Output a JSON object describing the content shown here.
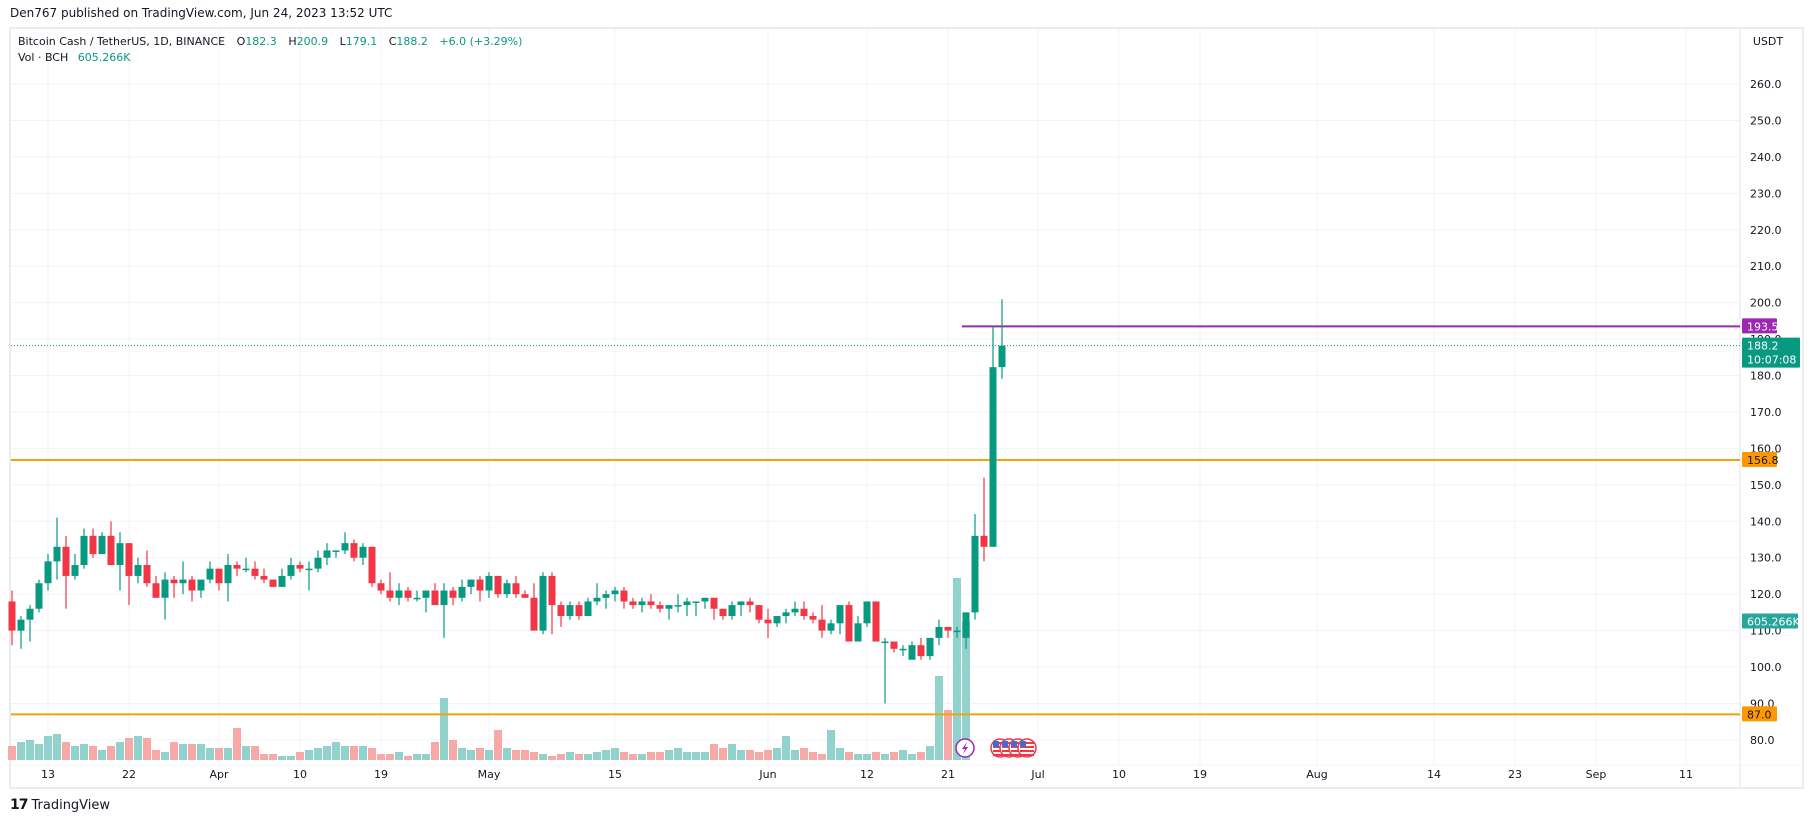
{
  "header": {
    "published": "Den767 published on TradingView.com, Jun 24, 2023 13:52 UTC"
  },
  "legend": {
    "symbol": "Bitcoin Cash / TetherUS, 1D, BINANCE",
    "open_label": "O",
    "open": "182.3",
    "high_label": "H",
    "high": "200.9",
    "low_label": "L",
    "low": "179.1",
    "close_label": "C",
    "close": "188.2",
    "change": "+6.0 (+3.29%)",
    "vol_label": "Vol · BCH",
    "vol_value": "605.266K"
  },
  "price_axis": {
    "currency": "USDT",
    "ticks": [
      "260.0",
      "250.0",
      "240.0",
      "230.0",
      "220.0",
      "210.0",
      "200.0",
      "190.0",
      "180.0",
      "170.0",
      "160.0",
      "150.0",
      "140.0",
      "130.0",
      "120.0",
      "110.0",
      "100.0",
      "90.0",
      "80.0"
    ],
    "tick_values": [
      260,
      250,
      240,
      230,
      220,
      210,
      200,
      190,
      180,
      170,
      160,
      150,
      140,
      130,
      120,
      110,
      100,
      90,
      80
    ]
  },
  "price_labels": [
    {
      "text": "193.5",
      "value": 193.5,
      "color": "#9c27b0",
      "text_color": "#ffffff"
    },
    {
      "text": "188.2",
      "sub": "10:07:08",
      "value": 188.2,
      "color": "#089981",
      "text_color": "#ffffff"
    },
    {
      "text": "156.8",
      "value": 156.8,
      "color": "#ff9800",
      "text_color": "#131722"
    },
    {
      "text": "605.266K",
      "value": 112.5,
      "color": "#26a69a",
      "text_color": "#ffffff"
    },
    {
      "text": "87.0",
      "value": 87.0,
      "color": "#ff9800",
      "text_color": "#131722"
    }
  ],
  "horizontal_lines": [
    {
      "name": "resistance-line-193-5",
      "value": 193.5,
      "color": "#9c27b0",
      "start_index": 102
    },
    {
      "name": "support-line-156-8",
      "value": 156.8,
      "color": "#f0a30a",
      "start_index": -5
    },
    {
      "name": "support-line-87-0",
      "value": 87.0,
      "color": "#f0a30a",
      "start_index": -5
    }
  ],
  "time_axis": {
    "labels": [
      "13",
      "22",
      "Apr",
      "10",
      "19",
      "May",
      "15",
      "Jun",
      "12",
      "21",
      "Jul",
      "10",
      "19",
      "Aug",
      "14",
      "23",
      "Sep",
      "11"
    ],
    "label_index": [
      0,
      9,
      19,
      28,
      37,
      49,
      63,
      80,
      91,
      100,
      110,
      119,
      128,
      141,
      154,
      163,
      172,
      182
    ]
  },
  "events": [
    {
      "type": "lightning-icon",
      "index": 102
    },
    {
      "type": "us-flag-icon",
      "index": 105
    },
    {
      "type": "us-flag-icon",
      "index": 106
    },
    {
      "type": "us-flag-icon",
      "index": 107
    },
    {
      "type": "us-flag-icon",
      "index": 108
    }
  ],
  "footer": {
    "brand": "TradingView",
    "logo": "17"
  },
  "colors": {
    "up": "#089981",
    "down": "#f23645",
    "vol_up": "#92d2cc",
    "vol_down": "#f7a9a7",
    "grid": "#f0f3fa"
  },
  "chart_data": {
    "type": "candlestick",
    "title": "Bitcoin Cash / TetherUS, 1D, BINANCE",
    "ylabel": "USDT",
    "ylim": [
      76,
      265
    ],
    "grid": true,
    "start_date": "2023-03-09",
    "x_ticks": [
      "13",
      "22",
      "Apr",
      "10",
      "19",
      "May",
      "15",
      "Jun",
      "12",
      "21",
      "Jul",
      "10",
      "19",
      "Aug",
      "14",
      "23",
      "Sep",
      "11"
    ],
    "horizontal_levels": [
      193.5,
      156.8,
      87.0
    ],
    "last_price": 188.2,
    "last_volume": "605.266K",
    "ohlc": [
      [
        118,
        121,
        106,
        110
      ],
      [
        110,
        114,
        105,
        113
      ],
      [
        113,
        117,
        107,
        116
      ],
      [
        116,
        124,
        115,
        123
      ],
      [
        123,
        131,
        121,
        129
      ],
      [
        129,
        141,
        124,
        133
      ],
      [
        133,
        136,
        116,
        125
      ],
      [
        125,
        131,
        124,
        128
      ],
      [
        128,
        138,
        127,
        136
      ],
      [
        136,
        138,
        130,
        131
      ],
      [
        131,
        137,
        131,
        136
      ],
      [
        136,
        140,
        129,
        128
      ],
      [
        128,
        137,
        121,
        134
      ],
      [
        134,
        134,
        117,
        125
      ],
      [
        125,
        130,
        123,
        128
      ],
      [
        128,
        132,
        122,
        123
      ],
      [
        123,
        125,
        119,
        119
      ],
      [
        119,
        126,
        113,
        124
      ],
      [
        124,
        125,
        119,
        123
      ],
      [
        123,
        129,
        120,
        124
      ],
      [
        124,
        125,
        118,
        121
      ],
      [
        121,
        124,
        119,
        124
      ],
      [
        124,
        129,
        123,
        127
      ],
      [
        127,
        127,
        121,
        123
      ],
      [
        123,
        131,
        118,
        128
      ],
      [
        128,
        129,
        125,
        127
      ],
      [
        127,
        130,
        126,
        127
      ],
      [
        127,
        129,
        124,
        125
      ],
      [
        125,
        127,
        123,
        124
      ],
      [
        124,
        124,
        122,
        122
      ],
      [
        122,
        127,
        122,
        125
      ],
      [
        125,
        130,
        124,
        128
      ],
      [
        128,
        129,
        126,
        127
      ],
      [
        127,
        129,
        121,
        127
      ],
      [
        127,
        132,
        126,
        130
      ],
      [
        130,
        134,
        128,
        132
      ],
      [
        132,
        132,
        130,
        132
      ],
      [
        132,
        137,
        131,
        134
      ],
      [
        134,
        135,
        129,
        130
      ],
      [
        130,
        134,
        128,
        133
      ],
      [
        133,
        133,
        122,
        123
      ],
      [
        123,
        124,
        120,
        121
      ],
      [
        121,
        126,
        118,
        119
      ],
      [
        119,
        123,
        117,
        121
      ],
      [
        121,
        122,
        118,
        119
      ],
      [
        119,
        121,
        118,
        119
      ],
      [
        119,
        121,
        115,
        121
      ],
      [
        121,
        123,
        118,
        117
      ],
      [
        117,
        123,
        108,
        121
      ],
      [
        121,
        122,
        117,
        119
      ],
      [
        119,
        124,
        118,
        122
      ],
      [
        122,
        124,
        120,
        124
      ],
      [
        124,
        125,
        118,
        121
      ],
      [
        121,
        126,
        119,
        125
      ],
      [
        125,
        125,
        119,
        120
      ],
      [
        120,
        124,
        119,
        123
      ],
      [
        123,
        125,
        119,
        120
      ],
      [
        120,
        121,
        119,
        119
      ],
      [
        119,
        123,
        113,
        110
      ],
      [
        110,
        126,
        109,
        125
      ],
      [
        125,
        126,
        109,
        117
      ],
      [
        117,
        118,
        111,
        114
      ],
      [
        114,
        118,
        113,
        117
      ],
      [
        117,
        118,
        113,
        114
      ],
      [
        114,
        119,
        114,
        118
      ],
      [
        118,
        123,
        117,
        119
      ],
      [
        119,
        121,
        116,
        120
      ],
      [
        120,
        122,
        118,
        121
      ],
      [
        121,
        122,
        116,
        118
      ],
      [
        118,
        119,
        116,
        117
      ],
      [
        117,
        119,
        115,
        118
      ],
      [
        118,
        120,
        116,
        117
      ],
      [
        117,
        118,
        115,
        116
      ],
      [
        116,
        117,
        113,
        117
      ],
      [
        117,
        120,
        115,
        117
      ],
      [
        117,
        119,
        114,
        118
      ],
      [
        118,
        118,
        114,
        118
      ],
      [
        118,
        119,
        116,
        119
      ],
      [
        119,
        119,
        113,
        116
      ],
      [
        116,
        116,
        113,
        114
      ],
      [
        114,
        118,
        113,
        117
      ],
      [
        117,
        118,
        114,
        118
      ],
      [
        118,
        119,
        115,
        117
      ],
      [
        117,
        117,
        112,
        113
      ],
      [
        113,
        116,
        108,
        112
      ],
      [
        112,
        114,
        111,
        114
      ],
      [
        114,
        116,
        112,
        115
      ],
      [
        115,
        118,
        114,
        116
      ],
      [
        116,
        118,
        113,
        114
      ],
      [
        114,
        115,
        112,
        113
      ],
      [
        113,
        117,
        108,
        110
      ],
      [
        110,
        113,
        109,
        112
      ],
      [
        112,
        115,
        109,
        117
      ],
      [
        117,
        118,
        108,
        107
      ],
      [
        107,
        114,
        108,
        112
      ],
      [
        112,
        117,
        111,
        118
      ],
      [
        118,
        118,
        110,
        107
      ],
      [
        107,
        108,
        90,
        107
      ],
      [
        107,
        107,
        104,
        105
      ],
      [
        105,
        106,
        103,
        105
      ],
      [
        102,
        107,
        103,
        106
      ],
      [
        106,
        108,
        102,
        103
      ],
      [
        103,
        108,
        102,
        108
      ],
      [
        108,
        113,
        106,
        111
      ],
      [
        111,
        111,
        108,
        110
      ],
      [
        110,
        111,
        108,
        110
      ],
      [
        108,
        115,
        105,
        115
      ],
      [
        115,
        142,
        113,
        136
      ],
      [
        136,
        152,
        129,
        133
      ],
      [
        133,
        193.5,
        133,
        182.3
      ],
      [
        182.3,
        200.9,
        179.1,
        188.2
      ]
    ],
    "volume_rel": [
      14,
      18,
      20,
      16,
      24,
      26,
      18,
      14,
      16,
      14,
      10,
      14,
      18,
      22,
      24,
      22,
      10,
      8,
      18,
      16,
      16,
      16,
      12,
      12,
      12,
      32,
      14,
      14,
      6,
      6,
      4,
      4,
      8,
      10,
      12,
      14,
      18,
      14,
      14,
      14,
      12,
      6,
      6,
      8,
      4,
      6,
      6,
      18,
      62,
      20,
      12,
      10,
      12,
      10,
      30,
      12,
      10,
      10,
      8,
      6,
      4,
      6,
      8,
      6,
      6,
      8,
      10,
      12,
      8,
      6,
      6,
      8,
      8,
      10,
      12,
      8,
      8,
      8,
      16,
      12,
      16,
      10,
      10,
      8,
      10,
      12,
      24,
      10,
      12,
      8,
      6,
      30,
      12,
      8,
      6,
      6,
      8,
      6,
      8,
      10,
      6,
      8,
      14,
      84,
      50,
      182,
      138
    ]
  }
}
